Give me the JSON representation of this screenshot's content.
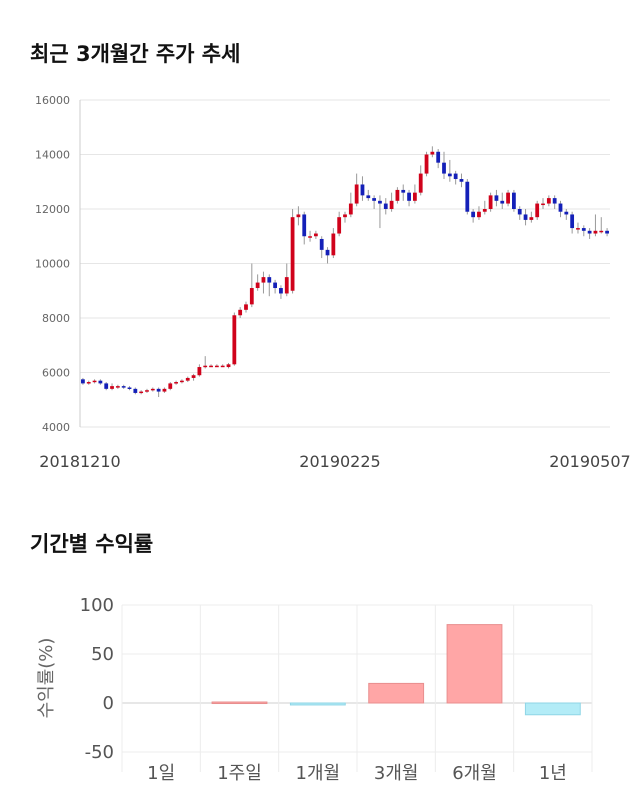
{
  "section1_title": "최근 3개월간 주가 추세",
  "section2_title": "기간별 수익률",
  "chart_data": [
    {
      "type": "candlestick",
      "ylim": [
        4000,
        16000
      ],
      "yticks": [
        "16000",
        "14000",
        "12000",
        "10000",
        "8000",
        "6000",
        "4000"
      ],
      "xticks": [
        "20181210",
        "20190225",
        "20190507"
      ],
      "grid": true,
      "colors": {
        "up": "#d0021b",
        "down": "#1420b8",
        "wick": "#999999"
      },
      "candles": [
        [
          5750,
          5600,
          5800,
          5550
        ],
        [
          5600,
          5650,
          5700,
          5550
        ],
        [
          5650,
          5700,
          5750,
          5600
        ],
        [
          5700,
          5600,
          5750,
          5550
        ],
        [
          5600,
          5400,
          5650,
          5350
        ],
        [
          5400,
          5500,
          5600,
          5350
        ],
        [
          5500,
          5500,
          5550,
          5400
        ],
        [
          5500,
          5450,
          5550,
          5400
        ],
        [
          5450,
          5400,
          5500,
          5350
        ],
        [
          5400,
          5250,
          5450,
          5200
        ],
        [
          5250,
          5300,
          5350,
          5200
        ],
        [
          5300,
          5350,
          5400,
          5250
        ],
        [
          5350,
          5400,
          5450,
          5300
        ],
        [
          5400,
          5300,
          5450,
          5100
        ],
        [
          5300,
          5400,
          5450,
          5250
        ],
        [
          5400,
          5600,
          5650,
          5350
        ],
        [
          5600,
          5650,
          5700,
          5550
        ],
        [
          5650,
          5700,
          5750,
          5600
        ],
        [
          5700,
          5800,
          5850,
          5650
        ],
        [
          5800,
          5900,
          5950,
          5700
        ],
        [
          5900,
          6200,
          6300,
          5850
        ],
        [
          6200,
          6250,
          6600,
          6150
        ],
        [
          6250,
          6250,
          6300,
          6200
        ],
        [
          6250,
          6250,
          6300,
          6200
        ],
        [
          6250,
          6250,
          6300,
          6200
        ],
        [
          6200,
          6300,
          6350,
          6150
        ],
        [
          6300,
          8100,
          8200,
          6250
        ],
        [
          8100,
          8300,
          8400,
          8000
        ],
        [
          8300,
          8500,
          8600,
          8200
        ],
        [
          8500,
          9100,
          10000,
          8400
        ],
        [
          9100,
          9300,
          9600,
          9000
        ],
        [
          9300,
          9500,
          9700,
          8900
        ],
        [
          9500,
          9300,
          9600,
          8800
        ],
        [
          9300,
          9100,
          9400,
          8900
        ],
        [
          9100,
          8900,
          9200,
          8700
        ],
        [
          8900,
          9500,
          10000,
          8800
        ],
        [
          9000,
          11700,
          12000,
          8900
        ],
        [
          11700,
          11800,
          12100,
          11400
        ],
        [
          11800,
          11000,
          11900,
          10700
        ],
        [
          11000,
          11000,
          11200,
          10800
        ],
        [
          11000,
          11100,
          11200,
          10900
        ],
        [
          10900,
          10500,
          11000,
          10200
        ],
        [
          10500,
          10300,
          10600,
          10000
        ],
        [
          10300,
          11100,
          11300,
          10200
        ],
        [
          11100,
          11700,
          11900,
          11000
        ],
        [
          11700,
          11800,
          11900,
          11500
        ],
        [
          11800,
          12200,
          12600,
          11700
        ],
        [
          12200,
          12900,
          13300,
          12100
        ],
        [
          12900,
          12500,
          13200,
          12300
        ],
        [
          12500,
          12400,
          12700,
          12300
        ],
        [
          12400,
          12300,
          12500,
          12000
        ],
        [
          12300,
          12200,
          12500,
          11300
        ],
        [
          12200,
          12000,
          12400,
          11800
        ],
        [
          12000,
          12300,
          12600,
          11900
        ],
        [
          12300,
          12700,
          12800,
          12200
        ],
        [
          12700,
          12600,
          12900,
          12300
        ],
        [
          12600,
          12300,
          12700,
          12100
        ],
        [
          12300,
          12600,
          12900,
          12200
        ],
        [
          12600,
          13300,
          13600,
          12500
        ],
        [
          13300,
          14000,
          14100,
          13200
        ],
        [
          14000,
          14100,
          14300,
          13900
        ],
        [
          14100,
          13700,
          14200,
          13500
        ],
        [
          13700,
          13300,
          14100,
          13100
        ],
        [
          13300,
          13200,
          13800,
          13000
        ],
        [
          13300,
          13100,
          13400,
          12900
        ],
        [
          13100,
          13000,
          13300,
          12800
        ],
        [
          13000,
          11900,
          13100,
          11800
        ],
        [
          11900,
          11700,
          12000,
          11500
        ],
        [
          11700,
          11900,
          12100,
          11600
        ],
        [
          11900,
          12000,
          12300,
          11800
        ],
        [
          12000,
          12500,
          12600,
          11900
        ],
        [
          12500,
          12300,
          12700,
          12100
        ],
        [
          12300,
          12200,
          12600,
          12000
        ],
        [
          12200,
          12600,
          12700,
          12100
        ],
        [
          12600,
          12000,
          12700,
          11900
        ],
        [
          12000,
          11800,
          12100,
          11600
        ],
        [
          11800,
          11600,
          12000,
          11400
        ],
        [
          11600,
          11700,
          11900,
          11500
        ],
        [
          11700,
          12200,
          12300,
          11600
        ],
        [
          12200,
          12200,
          12400,
          12000
        ],
        [
          12200,
          12400,
          12500,
          12100
        ],
        [
          12400,
          12200,
          12500,
          12000
        ],
        [
          12200,
          11900,
          12300,
          11700
        ],
        [
          11900,
          11800,
          12000,
          11600
        ],
        [
          11800,
          11300,
          11900,
          11100
        ],
        [
          11300,
          11300,
          11500,
          11100
        ],
        [
          11300,
          11200,
          11400,
          11000
        ],
        [
          11200,
          11100,
          11300,
          10900
        ],
        [
          11100,
          11200,
          11800,
          11000
        ],
        [
          11200,
          11200,
          11700,
          11100
        ],
        [
          11200,
          11100,
          11300,
          11000
        ]
      ]
    },
    {
      "type": "bar",
      "ylabel": "수익률(%)",
      "ylim": [
        -50,
        100
      ],
      "yticks": [
        "100",
        "50",
        "0",
        "-50"
      ],
      "categories": [
        "1일",
        "1주일",
        "1개월",
        "3개월",
        "6개월",
        "1년"
      ],
      "values": [
        0,
        1,
        -2,
        20,
        80,
        -12
      ],
      "colors": {
        "positive": "#ffa6a6",
        "positive_edge": "#e88e8e",
        "negative": "#b3ecf7",
        "negative_edge": "#8fd5e6"
      }
    }
  ]
}
